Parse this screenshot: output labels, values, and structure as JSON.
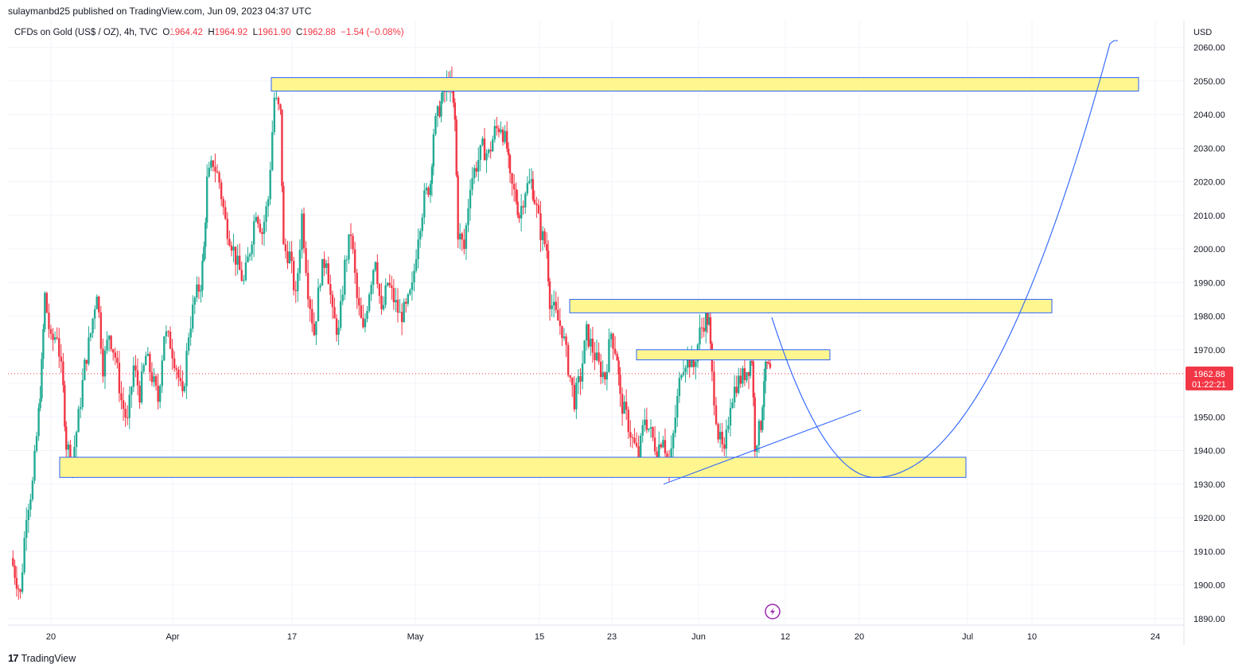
{
  "publisher_line": "sulaymanbd25 published on TradingView.com, Jun 09, 2023 04:37 UTC",
  "legend": {
    "symbol": "CFDs on Gold (US$ / OZ), 4h, TVC",
    "open_label": "O",
    "open": "1964.42",
    "high_label": "H",
    "high": "1964.92",
    "low_label": "L",
    "low": "1961.90",
    "close_label": "C",
    "close": "1962.88",
    "change": "−1.54 (−0.08%)"
  },
  "brand": "TradingView",
  "brand_logo": "17",
  "colors": {
    "up": "#22ab94",
    "down": "#f23645",
    "zone_fill": "#fff68f",
    "zone_border": "#2962ff",
    "line": "#2962ff",
    "grid": "#f0f3fa",
    "price_tag": "#f23645"
  },
  "icons": {
    "lightning": "lightning-icon"
  },
  "chart_data": {
    "type": "candlestick",
    "instrument": "CFDs on Gold (US$ / OZ)",
    "timeframe": "4h",
    "currency_label": "USD",
    "ylim": [
      1889,
      2067
    ],
    "y_ticks": [
      "2060.00",
      "2050.00",
      "2040.00",
      "2030.00",
      "2020.00",
      "2010.00",
      "2000.00",
      "1990.00",
      "1980.00",
      "1970.00",
      "1960.00",
      "1950.00",
      "1940.00",
      "1930.00",
      "1920.00",
      "1910.00",
      "1900.00",
      "1890.00"
    ],
    "x_ticks": [
      "20",
      "Apr",
      "17",
      "May",
      "15",
      "23",
      "Jun",
      "12",
      "20",
      "Jul",
      "10",
      "24"
    ],
    "last_price": "1962.88",
    "countdown": "01:22:21",
    "price_path": [
      [
        0,
        1908
      ],
      [
        3,
        1897
      ],
      [
        5,
        1922
      ],
      [
        7,
        1930
      ],
      [
        9,
        1951
      ],
      [
        10,
        1965
      ],
      [
        11,
        1986
      ],
      [
        13,
        1972
      ],
      [
        15,
        1975
      ],
      [
        17,
        1958
      ],
      [
        18,
        1942
      ],
      [
        20,
        1937
      ],
      [
        22,
        1950
      ],
      [
        24,
        1965
      ],
      [
        26,
        1975
      ],
      [
        28,
        1988
      ],
      [
        30,
        1965
      ],
      [
        32,
        1975
      ],
      [
        34,
        1968
      ],
      [
        36,
        1955
      ],
      [
        38,
        1948
      ],
      [
        40,
        1965
      ],
      [
        42,
        1957
      ],
      [
        44,
        1968
      ],
      [
        46,
        1962
      ],
      [
        48,
        1955
      ],
      [
        50,
        1975
      ],
      [
        52,
        1972
      ],
      [
        54,
        1965
      ],
      [
        56,
        1955
      ],
      [
        58,
        1975
      ],
      [
        60,
        1985
      ],
      [
        62,
        1990
      ],
      [
        63,
        2000
      ],
      [
        64,
        2020
      ],
      [
        66,
        2026
      ],
      [
        68,
        2020
      ],
      [
        70,
        2008
      ],
      [
        72,
        2002
      ],
      [
        74,
        1995
      ],
      [
        76,
        1990
      ],
      [
        78,
        2000
      ],
      [
        80,
        2012
      ],
      [
        82,
        2005
      ],
      [
        84,
        2015
      ],
      [
        86,
        2045
      ],
      [
        88,
        2040
      ],
      [
        89,
        2000
      ],
      [
        91,
        1998
      ],
      [
        93,
        1985
      ],
      [
        95,
        2010
      ],
      [
        97,
        1988
      ],
      [
        99,
        1975
      ],
      [
        101,
        1992
      ],
      [
        103,
        1998
      ],
      [
        105,
        1980
      ],
      [
        107,
        1975
      ],
      [
        109,
        1995
      ],
      [
        111,
        2005
      ],
      [
        113,
        1985
      ],
      [
        115,
        1975
      ],
      [
        117,
        1988
      ],
      [
        119,
        1998
      ],
      [
        121,
        1980
      ],
      [
        123,
        1990
      ],
      [
        125,
        1985
      ],
      [
        127,
        1980
      ],
      [
        129,
        1982
      ],
      [
        131,
        1988
      ],
      [
        133,
        2005
      ],
      [
        135,
        2015
      ],
      [
        137,
        2020
      ],
      [
        138,
        2035
      ],
      [
        140,
        2042
      ],
      [
        141,
        2045
      ],
      [
        143,
        2050
      ],
      [
        144,
        2046
      ],
      [
        145,
        2038
      ],
      [
        146,
        2005
      ],
      [
        148,
        2000
      ],
      [
        150,
        2020
      ],
      [
        152,
        2025
      ],
      [
        154,
        2030
      ],
      [
        156,
        2028
      ],
      [
        158,
        2035
      ],
      [
        160,
        2037
      ],
      [
        162,
        2030
      ],
      [
        163,
        2020
      ],
      [
        165,
        2015
      ],
      [
        166,
        2010
      ],
      [
        168,
        2018
      ],
      [
        170,
        2020
      ],
      [
        171,
        2015
      ],
      [
        173,
        2005
      ],
      [
        175,
        2000
      ],
      [
        176,
        1985
      ],
      [
        178,
        1980
      ],
      [
        180,
        1976
      ],
      [
        182,
        1965
      ],
      [
        184,
        1955
      ],
      [
        186,
        1962
      ],
      [
        188,
        1975
      ],
      [
        190,
        1970
      ],
      [
        192,
        1965
      ],
      [
        194,
        1962
      ],
      [
        196,
        1975
      ],
      [
        198,
        1968
      ],
      [
        199,
        1955
      ],
      [
        201,
        1950
      ],
      [
        203,
        1943
      ],
      [
        205,
        1938
      ],
      [
        207,
        1950
      ],
      [
        209,
        1945
      ],
      [
        211,
        1940
      ],
      [
        213,
        1945
      ],
      [
        215,
        1933
      ],
      [
        217,
        1950
      ],
      [
        219,
        1965
      ],
      [
        221,
        1968
      ],
      [
        223,
        1965
      ],
      [
        225,
        1975
      ],
      [
        227,
        1980
      ],
      [
        228,
        1978
      ],
      [
        229,
        1962
      ],
      [
        231,
        1945
      ],
      [
        233,
        1938
      ],
      [
        235,
        1955
      ],
      [
        237,
        1960
      ],
      [
        239,
        1962
      ],
      [
        241,
        1965
      ],
      [
        242,
        1968
      ],
      [
        243,
        1942
      ],
      [
        245,
        1948
      ],
      [
        246,
        1962
      ],
      [
        247,
        1965
      ],
      [
        248,
        1963
      ]
    ],
    "zones": [
      {
        "from_day": 27,
        "to_day": 206,
        "low": 2047,
        "high": 2051
      },
      {
        "from_day": 126,
        "to_day": 210,
        "low": 1981,
        "high": 1985
      },
      {
        "from_day": 137,
        "to_day": 175,
        "low": 1967,
        "high": 1970
      },
      {
        "from_day": 7,
        "to_day": 186,
        "low": 1932,
        "high": 1938
      }
    ],
    "trendline": {
      "from": [
        150,
        1930
      ],
      "to": [
        182,
        1952
      ]
    },
    "projection_curve": [
      [
        174,
        1970
      ],
      [
        178,
        1955
      ],
      [
        182,
        1945
      ],
      [
        186,
        1937
      ],
      [
        190,
        1934
      ],
      [
        194,
        1932
      ],
      [
        198,
        1933
      ],
      [
        202,
        1940
      ],
      [
        206,
        1955
      ],
      [
        210,
        1975
      ],
      [
        214,
        2000
      ],
      [
        218,
        2030
      ],
      [
        222,
        2060
      ]
    ]
  }
}
